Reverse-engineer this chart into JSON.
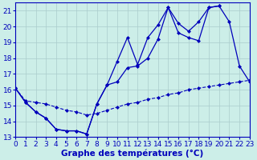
{
  "xlabel": "Graphe des températures (°C)",
  "hours": [
    0,
    1,
    2,
    3,
    4,
    5,
    6,
    7,
    8,
    9,
    10,
    11,
    12,
    13,
    14,
    15,
    16,
    17,
    18,
    19,
    20,
    21,
    22,
    23
  ],
  "series1": [
    16.1,
    15.2,
    14.6,
    14.2,
    13.5,
    13.4,
    13.4,
    13.2,
    15.1,
    16.3,
    17.8,
    19.3,
    17.6,
    19.3,
    20.1,
    21.2,
    19.6,
    19.3,
    19.1,
    21.2,
    21.3,
    null,
    null,
    null
  ],
  "series2": [
    16.1,
    15.2,
    14.6,
    14.2,
    13.5,
    13.4,
    13.4,
    13.2,
    15.1,
    16.3,
    16.5,
    17.4,
    17.5,
    18.0,
    19.2,
    21.2,
    20.2,
    19.7,
    20.3,
    21.2,
    21.3,
    20.3,
    17.5,
    16.5
  ],
  "series3": [
    16.1,
    15.3,
    15.2,
    15.1,
    14.9,
    14.7,
    14.6,
    14.4,
    14.5,
    14.7,
    14.9,
    15.1,
    15.2,
    15.4,
    15.5,
    15.7,
    15.8,
    16.0,
    16.1,
    16.2,
    16.3,
    16.4,
    16.5,
    16.6
  ],
  "line_color": "#0000bb",
  "marker": "D",
  "markersize": 2.5,
  "bg_color": "#cceee8",
  "grid_color": "#aacccc",
  "xlim": [
    0,
    23
  ],
  "ylim": [
    13.0,
    21.5
  ],
  "yticks": [
    13,
    14,
    15,
    16,
    17,
    18,
    19,
    20,
    21
  ],
  "xticks": [
    0,
    1,
    2,
    3,
    4,
    5,
    6,
    7,
    8,
    9,
    10,
    11,
    12,
    13,
    14,
    15,
    16,
    17,
    18,
    19,
    20,
    21,
    22,
    23
  ],
  "xlabel_fontsize": 7.5,
  "tick_fontsize": 6.5
}
